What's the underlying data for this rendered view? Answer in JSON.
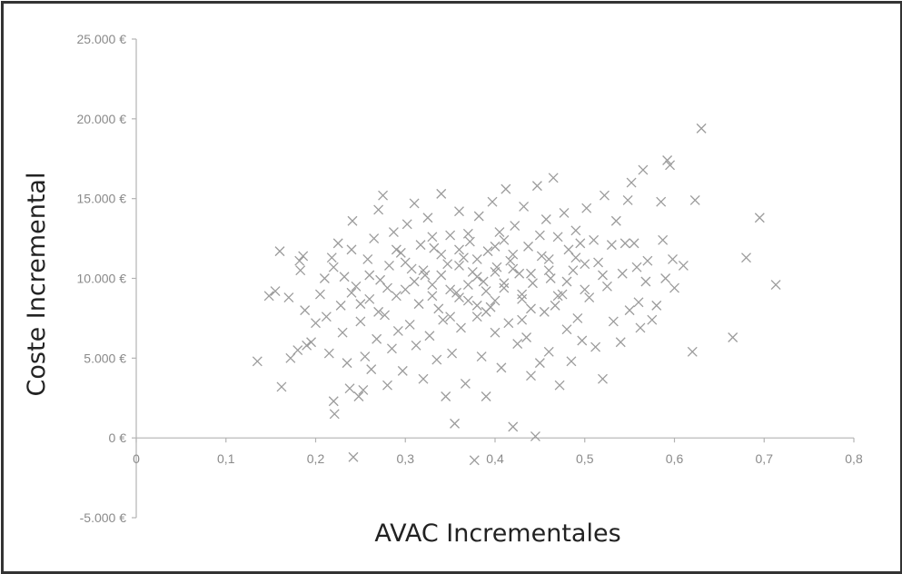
{
  "chart_data": {
    "type": "scatter",
    "xlabel": "AVAC Incrementales",
    "ylabel": "Coste Incremental",
    "xlim": [
      0,
      0.8
    ],
    "ylim": [
      -5000,
      25000
    ],
    "x_ticks": [
      0,
      0.1,
      0.2,
      0.3,
      0.4,
      0.5,
      0.6,
      0.7,
      0.8
    ],
    "x_tick_labels": [
      "0",
      "0,1",
      "0,2",
      "0,3",
      "0,4",
      "0,5",
      "0,6",
      "0,7",
      "0,8"
    ],
    "y_ticks": [
      -5000,
      0,
      5000,
      10000,
      15000,
      20000,
      25000
    ],
    "y_tick_labels": [
      "-5.000 €",
      "0 €",
      "5.000 €",
      "10.000 €",
      "15.000 €",
      "20.000 €",
      "25.000 €"
    ],
    "grid": false,
    "legend": "none",
    "marker": "x",
    "marker_color": "#9c9c9c",
    "series": [
      {
        "values": [
          [
            0.135,
            4800
          ],
          [
            0.148,
            8900
          ],
          [
            0.155,
            9200
          ],
          [
            0.16,
            11700
          ],
          [
            0.162,
            3200
          ],
          [
            0.17,
            8800
          ],
          [
            0.172,
            5000
          ],
          [
            0.18,
            5500
          ],
          [
            0.182,
            11100
          ],
          [
            0.183,
            10500
          ],
          [
            0.186,
            11400
          ],
          [
            0.188,
            8000
          ],
          [
            0.19,
            5800
          ],
          [
            0.195,
            6000
          ],
          [
            0.2,
            7200
          ],
          [
            0.205,
            9000
          ],
          [
            0.21,
            10000
          ],
          [
            0.212,
            7600
          ],
          [
            0.215,
            5300
          ],
          [
            0.218,
            11300
          ],
          [
            0.22,
            2300
          ],
          [
            0.221,
            1500
          ],
          [
            0.225,
            12200
          ],
          [
            0.228,
            8300
          ],
          [
            0.23,
            6600
          ],
          [
            0.232,
            10100
          ],
          [
            0.235,
            4700
          ],
          [
            0.238,
            3100
          ],
          [
            0.24,
            11800
          ],
          [
            0.241,
            13600
          ],
          [
            0.242,
            -1200
          ],
          [
            0.245,
            9500
          ],
          [
            0.248,
            2600
          ],
          [
            0.25,
            7300
          ],
          [
            0.253,
            3000
          ],
          [
            0.255,
            5100
          ],
          [
            0.258,
            11200
          ],
          [
            0.26,
            8700
          ],
          [
            0.262,
            4300
          ],
          [
            0.265,
            12500
          ],
          [
            0.268,
            6200
          ],
          [
            0.27,
            14300
          ],
          [
            0.272,
            9900
          ],
          [
            0.275,
            15200
          ],
          [
            0.277,
            7700
          ],
          [
            0.28,
            3300
          ],
          [
            0.282,
            10800
          ],
          [
            0.285,
            5600
          ],
          [
            0.287,
            12900
          ],
          [
            0.29,
            8900
          ],
          [
            0.292,
            6700
          ],
          [
            0.295,
            11600
          ],
          [
            0.297,
            4200
          ],
          [
            0.3,
            9300
          ],
          [
            0.302,
            13400
          ],
          [
            0.305,
            7100
          ],
          [
            0.307,
            10600
          ],
          [
            0.31,
            14700
          ],
          [
            0.312,
            5800
          ],
          [
            0.315,
            8400
          ],
          [
            0.317,
            12100
          ],
          [
            0.32,
            3700
          ],
          [
            0.322,
            10200
          ],
          [
            0.325,
            13800
          ],
          [
            0.327,
            6400
          ],
          [
            0.33,
            9600
          ],
          [
            0.332,
            11900
          ],
          [
            0.335,
            4900
          ],
          [
            0.337,
            8100
          ],
          [
            0.34,
            15300
          ],
          [
            0.342,
            7400
          ],
          [
            0.345,
            2600
          ],
          [
            0.347,
            10900
          ],
          [
            0.35,
            12700
          ],
          [
            0.352,
            5300
          ],
          [
            0.355,
            900
          ],
          [
            0.357,
            9100
          ],
          [
            0.36,
            14200
          ],
          [
            0.362,
            6900
          ],
          [
            0.365,
            11300
          ],
          [
            0.367,
            3400
          ],
          [
            0.37,
            8600
          ],
          [
            0.372,
            12300
          ],
          [
            0.375,
            10400
          ],
          [
            0.377,
            -1400
          ],
          [
            0.38,
            7600
          ],
          [
            0.382,
            13900
          ],
          [
            0.385,
            5100
          ],
          [
            0.387,
            9800
          ],
          [
            0.39,
            2600
          ],
          [
            0.392,
            11700
          ],
          [
            0.395,
            8200
          ],
          [
            0.397,
            14800
          ],
          [
            0.4,
            6600
          ],
          [
            0.402,
            10700
          ],
          [
            0.405,
            12900
          ],
          [
            0.407,
            4400
          ],
          [
            0.41,
            9400
          ],
          [
            0.412,
            15600
          ],
          [
            0.415,
            7200
          ],
          [
            0.417,
            11100
          ],
          [
            0.42,
            700
          ],
          [
            0.422,
            13300
          ],
          [
            0.425,
            5900
          ],
          [
            0.427,
            10300
          ],
          [
            0.43,
            8700
          ],
          [
            0.432,
            14500
          ],
          [
            0.435,
            6300
          ],
          [
            0.437,
            12000
          ],
          [
            0.44,
            3900
          ],
          [
            0.442,
            9700
          ],
          [
            0.445,
            100
          ],
          [
            0.447,
            15800
          ],
          [
            0.45,
            4700
          ],
          [
            0.452,
            11400
          ],
          [
            0.455,
            7900
          ],
          [
            0.457,
            13700
          ],
          [
            0.46,
            5400
          ],
          [
            0.462,
            10000
          ],
          [
            0.465,
            16300
          ],
          [
            0.467,
            8300
          ],
          [
            0.47,
            12600
          ],
          [
            0.472,
            3300
          ],
          [
            0.475,
            9000
          ],
          [
            0.477,
            14100
          ],
          [
            0.48,
            6800
          ],
          [
            0.482,
            11800
          ],
          [
            0.485,
            4800
          ],
          [
            0.487,
            10500
          ],
          [
            0.49,
            13000
          ],
          [
            0.492,
            7500
          ],
          [
            0.495,
            12200
          ],
          [
            0.497,
            6100
          ],
          [
            0.5,
            10900
          ],
          [
            0.502,
            14400
          ],
          [
            0.505,
            8800
          ],
          [
            0.51,
            12400
          ],
          [
            0.512,
            5700
          ],
          [
            0.515,
            11000
          ],
          [
            0.52,
            3700
          ],
          [
            0.522,
            15200
          ],
          [
            0.525,
            9500
          ],
          [
            0.53,
            12100
          ],
          [
            0.532,
            7300
          ],
          [
            0.535,
            13600
          ],
          [
            0.54,
            6000
          ],
          [
            0.542,
            10300
          ],
          [
            0.545,
            12200
          ],
          [
            0.548,
            14900
          ],
          [
            0.55,
            8000
          ],
          [
            0.552,
            16000
          ],
          [
            0.555,
            12200
          ],
          [
            0.558,
            10700
          ],
          [
            0.56,
            8500
          ],
          [
            0.562,
            6900
          ],
          [
            0.565,
            16800
          ],
          [
            0.568,
            9800
          ],
          [
            0.57,
            11100
          ],
          [
            0.575,
            7400
          ],
          [
            0.58,
            8300
          ],
          [
            0.585,
            14800
          ],
          [
            0.587,
            12400
          ],
          [
            0.59,
            10000
          ],
          [
            0.592,
            17400
          ],
          [
            0.595,
            17100
          ],
          [
            0.598,
            11200
          ],
          [
            0.6,
            9400
          ],
          [
            0.61,
            10800
          ],
          [
            0.62,
            5400
          ],
          [
            0.623,
            14900
          ],
          [
            0.63,
            19400
          ],
          [
            0.665,
            6300
          ],
          [
            0.68,
            11300
          ],
          [
            0.695,
            13800
          ],
          [
            0.713,
            9600
          ],
          [
            0.31,
            9800
          ],
          [
            0.32,
            10500
          ],
          [
            0.33,
            8900
          ],
          [
            0.34,
            10200
          ],
          [
            0.35,
            9300
          ],
          [
            0.36,
            10800
          ],
          [
            0.37,
            9600
          ],
          [
            0.38,
            10100
          ],
          [
            0.39,
            9200
          ],
          [
            0.4,
            10400
          ],
          [
            0.41,
            9700
          ],
          [
            0.42,
            10600
          ],
          [
            0.43,
            9000
          ],
          [
            0.44,
            10300
          ],
          [
            0.36,
            8800
          ],
          [
            0.38,
            11200
          ],
          [
            0.4,
            8600
          ],
          [
            0.42,
            11500
          ],
          [
            0.3,
            11000
          ],
          [
            0.28,
            9400
          ],
          [
            0.26,
            10200
          ],
          [
            0.46,
            11200
          ],
          [
            0.48,
            9800
          ],
          [
            0.5,
            9300
          ],
          [
            0.52,
            10200
          ],
          [
            0.27,
            7900
          ],
          [
            0.29,
            11800
          ],
          [
            0.33,
            12600
          ],
          [
            0.35,
            7600
          ],
          [
            0.37,
            12800
          ],
          [
            0.39,
            7900
          ],
          [
            0.41,
            12400
          ],
          [
            0.43,
            7400
          ],
          [
            0.45,
            12700
          ],
          [
            0.47,
            8900
          ],
          [
            0.49,
            11300
          ],
          [
            0.24,
            9100
          ],
          [
            0.22,
            10700
          ],
          [
            0.25,
            8400
          ],
          [
            0.34,
            11500
          ],
          [
            0.36,
            11800
          ],
          [
            0.38,
            8300
          ],
          [
            0.4,
            12000
          ],
          [
            0.44,
            8100
          ],
          [
            0.46,
            10500
          ]
        ]
      }
    ]
  }
}
